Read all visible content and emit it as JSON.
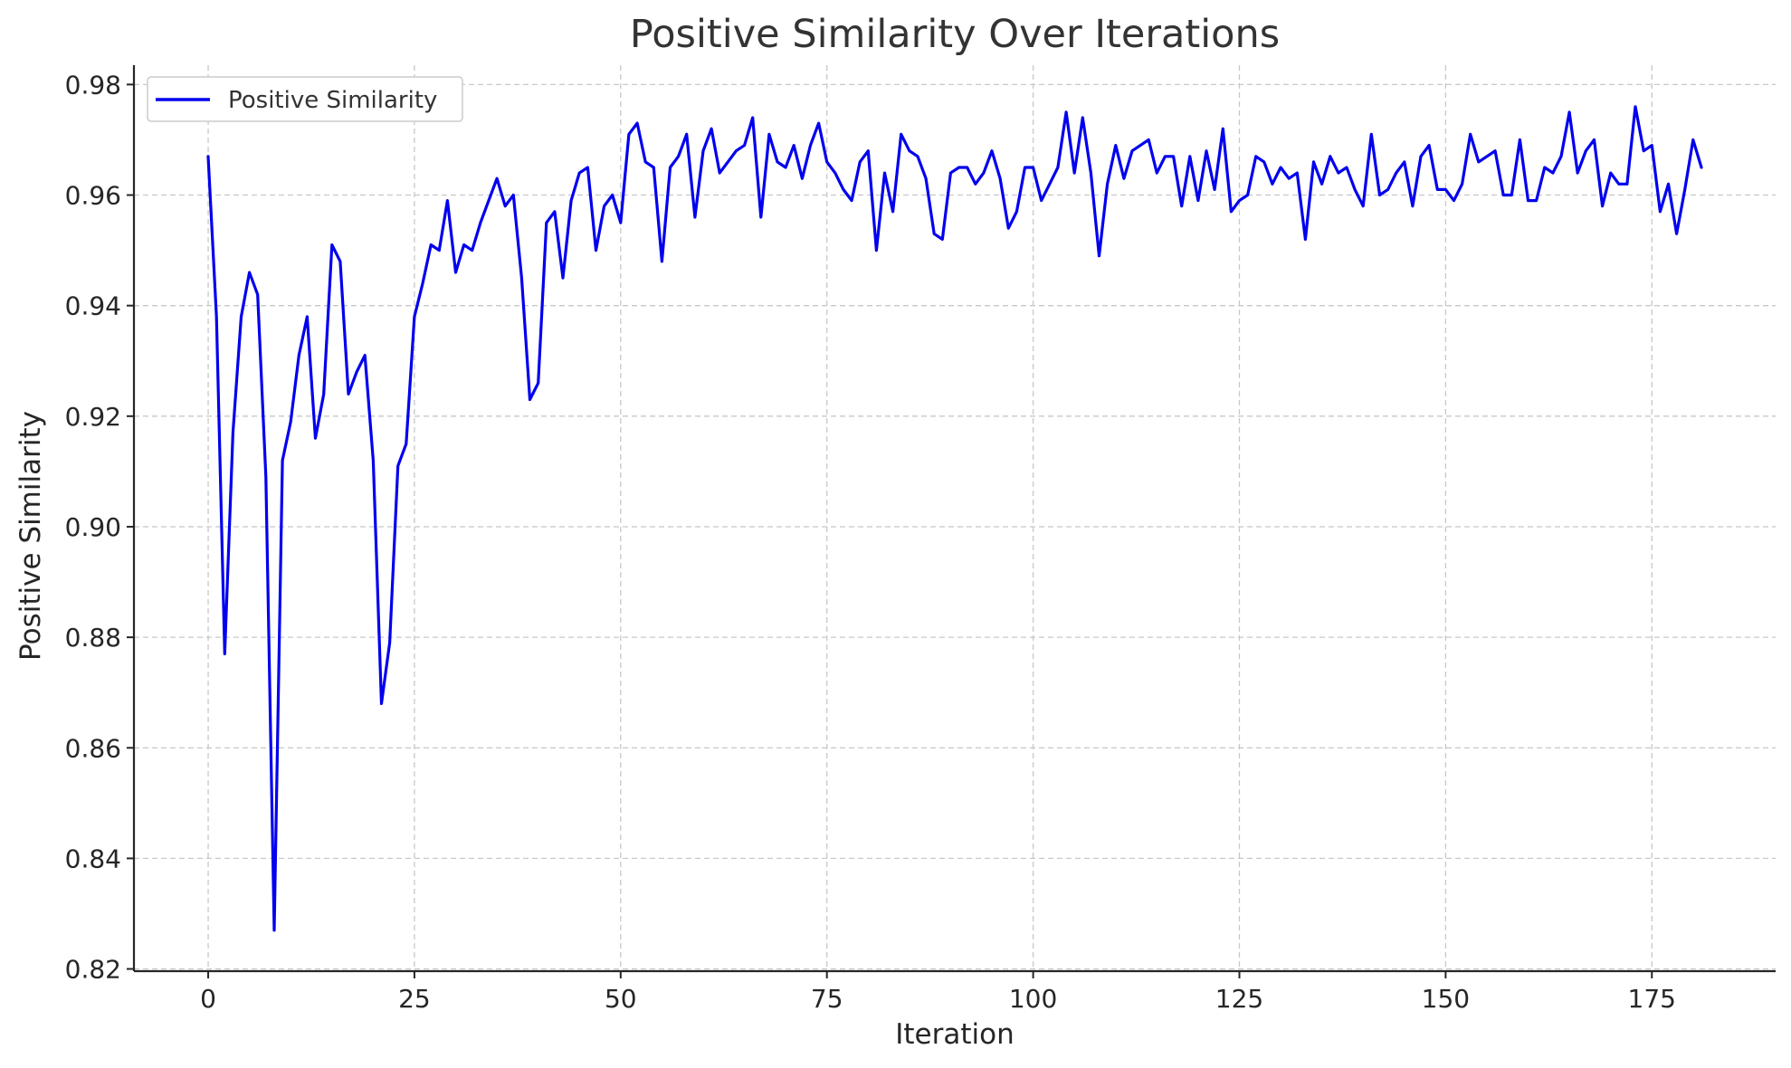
{
  "chart_data": {
    "type": "line",
    "title": "Positive Similarity Over Iterations",
    "xlabel": "Iteration",
    "ylabel": "Positive Similarity",
    "xlim": [
      -9,
      190
    ],
    "ylim": [
      0.8196,
      0.9835
    ],
    "xticks": [
      0,
      25,
      50,
      75,
      100,
      125,
      150,
      175
    ],
    "yticks": [
      0.82,
      0.84,
      0.86,
      0.88,
      0.9,
      0.92,
      0.94,
      0.96,
      0.98
    ],
    "ytick_labels": [
      "0.82",
      "0.84",
      "0.86",
      "0.88",
      "0.90",
      "0.92",
      "0.94",
      "0.96",
      "0.98"
    ],
    "grid": true,
    "legend_position": "top-left",
    "series": [
      {
        "name": "Positive Similarity",
        "color": "#0000ee",
        "x_start": 0,
        "x_step": 1,
        "values": [
          0.967,
          0.938,
          0.877,
          0.917,
          0.938,
          0.946,
          0.942,
          0.909,
          0.827,
          0.912,
          0.919,
          0.931,
          0.938,
          0.916,
          0.924,
          0.951,
          0.948,
          0.924,
          0.928,
          0.931,
          0.912,
          0.868,
          0.879,
          0.911,
          0.915,
          0.938,
          0.944,
          0.951,
          0.95,
          0.959,
          0.946,
          0.951,
          0.95,
          0.955,
          0.959,
          0.963,
          0.958,
          0.96,
          0.945,
          0.923,
          0.926,
          0.955,
          0.957,
          0.945,
          0.959,
          0.964,
          0.965,
          0.95,
          0.958,
          0.96,
          0.955,
          0.971,
          0.973,
          0.966,
          0.965,
          0.948,
          0.965,
          0.967,
          0.971,
          0.956,
          0.968,
          0.972,
          0.964,
          0.966,
          0.968,
          0.969,
          0.974,
          0.956,
          0.971,
          0.966,
          0.965,
          0.969,
          0.963,
          0.969,
          0.973,
          0.966,
          0.964,
          0.961,
          0.959,
          0.966,
          0.968,
          0.95,
          0.964,
          0.957,
          0.971,
          0.968,
          0.967,
          0.963,
          0.953,
          0.952,
          0.964,
          0.965,
          0.965,
          0.962,
          0.964,
          0.968,
          0.963,
          0.954,
          0.957,
          0.965,
          0.965,
          0.959,
          0.962,
          0.965,
          0.975,
          0.964,
          0.974,
          0.964,
          0.949,
          0.962,
          0.969,
          0.963,
          0.968,
          0.969,
          0.97,
          0.964,
          0.967,
          0.967,
          0.958,
          0.967,
          0.959,
          0.968,
          0.961,
          0.972,
          0.957,
          0.959,
          0.96,
          0.967,
          0.966,
          0.962,
          0.965,
          0.963,
          0.964,
          0.952,
          0.966,
          0.962,
          0.967,
          0.964,
          0.965,
          0.961,
          0.958,
          0.971,
          0.96,
          0.961,
          0.964,
          0.966,
          0.958,
          0.967,
          0.969,
          0.961,
          0.961,
          0.959,
          0.962,
          0.971,
          0.966,
          0.967,
          0.968,
          0.96,
          0.96,
          0.97,
          0.959,
          0.959,
          0.965,
          0.964,
          0.967,
          0.975,
          0.964,
          0.968,
          0.97,
          0.958,
          0.964,
          0.962,
          0.962,
          0.976,
          0.968,
          0.969,
          0.957,
          0.962,
          0.953,
          0.961,
          0.97,
          0.965
        ]
      }
    ]
  }
}
